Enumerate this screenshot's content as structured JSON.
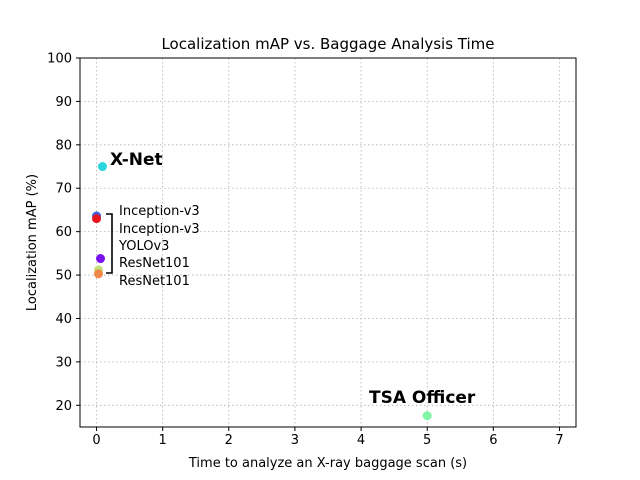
{
  "chart_data": {
    "type": "scatter",
    "title": "Localization mAP vs. Baggage Analysis Time",
    "xlabel": "Time to analyze an X-ray baggage scan (s)",
    "ylabel": "Localization mAP (%)",
    "xlim": [
      -0.25,
      7.25
    ],
    "ylim": [
      15,
      100
    ],
    "xticks": [
      "0",
      "1",
      "2",
      "3",
      "4",
      "5",
      "6",
      "7"
    ],
    "yticks": [
      "20",
      "30",
      "40",
      "50",
      "60",
      "70",
      "80",
      "90",
      "100"
    ],
    "grid": true,
    "points": [
      {
        "x": 0.0,
        "y": 63.6,
        "color": "#3a5fe0"
      },
      {
        "x": 0.0,
        "y": 63.0,
        "color": "#e8141e"
      },
      {
        "x": 0.06,
        "y": 53.8,
        "color": "#7a10f0"
      },
      {
        "x": 0.03,
        "y": 51.2,
        "color": "#c7e07e"
      },
      {
        "x": 0.03,
        "y": 50.3,
        "color": "#f0884a"
      },
      {
        "x": 0.09,
        "y": 75.0,
        "color": "#2ad6dc"
      },
      {
        "x": 5.0,
        "y": 17.6,
        "color": "#7ff5a6"
      }
    ],
    "annotations": {
      "xnet": "X-Net",
      "tsa": "TSA Officer",
      "group": [
        "Inception-v3",
        "Inception-v3",
        "YOLOv3",
        "ResNet101",
        "ResNet101"
      ]
    }
  }
}
